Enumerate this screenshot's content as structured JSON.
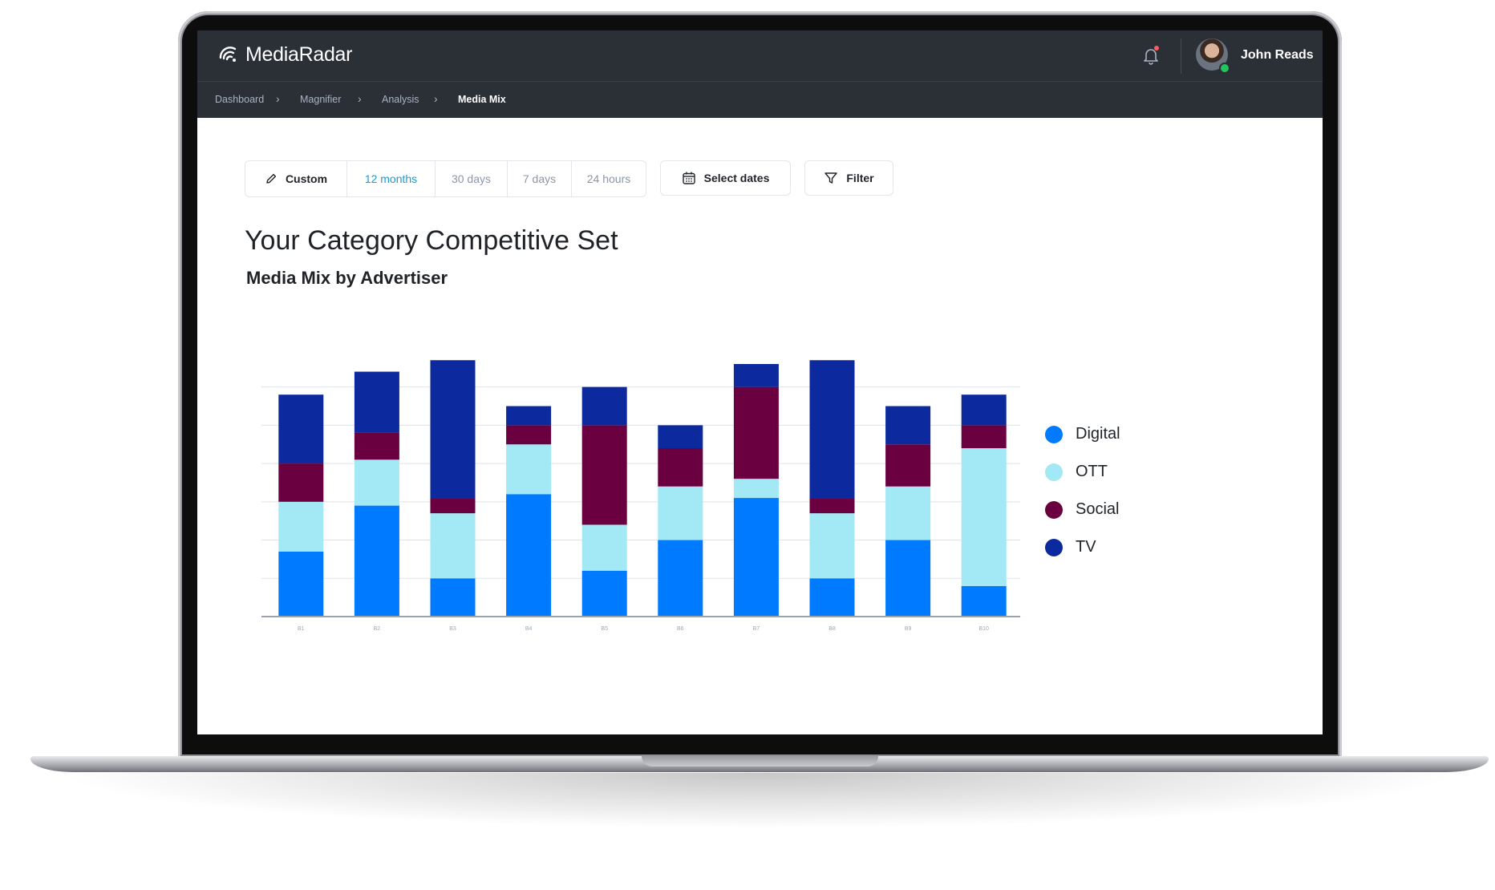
{
  "app": {
    "logo_text": "MediaRadar",
    "user_name": "John Reads"
  },
  "breadcrumb": [
    "Dashboard",
    "Magnifier",
    "Analysis",
    "Media Mix"
  ],
  "toolbar": {
    "custom_label": "Custom",
    "ranges": [
      "12 months",
      "30 days",
      "7 days",
      "24 hours"
    ],
    "selected_range": "12 months",
    "select_dates_label": "Select dates",
    "filter_label": "Filter"
  },
  "page": {
    "title": "Your Category Competitive Set",
    "subtitle": "Media Mix by Advertiser"
  },
  "chart_data": {
    "type": "bar",
    "stacked": true,
    "categories": [
      "B1",
      "B2",
      "B3",
      "B4",
      "B5",
      "B6",
      "B7",
      "B8",
      "B9",
      "B10"
    ],
    "series": [
      {
        "name": "Digital",
        "color": "#007bff",
        "values": [
          17,
          29,
          10,
          32,
          12,
          20,
          31,
          10,
          20,
          8
        ]
      },
      {
        "name": "OTT",
        "color": "#a3e8f5",
        "values": [
          13,
          12,
          17,
          13,
          12,
          14,
          5,
          17,
          14,
          36
        ]
      },
      {
        "name": "Social",
        "color": "#6b0040",
        "values": [
          10,
          7,
          4,
          5,
          26,
          10,
          24,
          4,
          11,
          6
        ]
      },
      {
        "name": "TV",
        "color": "#0c2a9e",
        "values": [
          18,
          16,
          36,
          5,
          10,
          6,
          6,
          36,
          10,
          8
        ]
      }
    ],
    "ylim": [
      0,
      66
    ],
    "grid": true,
    "legend": "right"
  }
}
